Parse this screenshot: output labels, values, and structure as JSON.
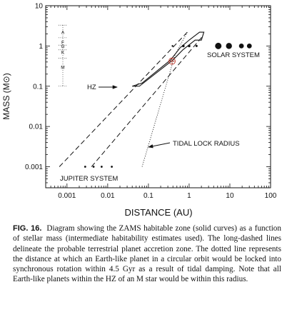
{
  "chart_data": {
    "type": "scatter",
    "xscale": "log",
    "yscale": "log",
    "xlim": [
      0.0003,
      100
    ],
    "ylim": [
      0.0003,
      10
    ],
    "xlabel": "DISTANCE (AU)",
    "ylabel": "MASS (M⊙)",
    "xticks": [
      {
        "v": 0.001,
        "label": "0.001"
      },
      {
        "v": 0.01,
        "label": "0.01"
      },
      {
        "v": 0.1,
        "label": "0.1"
      },
      {
        "v": 1,
        "label": "1"
      },
      {
        "v": 10,
        "label": "10"
      },
      {
        "v": 100,
        "label": "100"
      }
    ],
    "yticks": [
      {
        "v": 0.001,
        "label": "0.001"
      },
      {
        "v": 0.01,
        "label": "0.01"
      },
      {
        "v": 0.1,
        "label": "0.1"
      },
      {
        "v": 1,
        "label": "1"
      },
      {
        "v": 10,
        "label": "10"
      }
    ],
    "spectral_classes": [
      {
        "label": "A",
        "mass": 2.2
      },
      {
        "label": "F",
        "mass": 1.25
      },
      {
        "label": "G",
        "mass": 1.0
      },
      {
        "label": "K",
        "mass": 0.7
      },
      {
        "label": "M",
        "mass": 0.3
      }
    ],
    "spectral_boundaries": [
      3.3,
      1.6,
      1.05,
      0.8,
      0.5,
      0.1
    ],
    "hz_polygon": [
      [
        0.04,
        0.1
      ],
      [
        0.06,
        0.1
      ],
      [
        0.4,
        0.45
      ],
      [
        0.7,
        0.8
      ],
      [
        1.4,
        1.4
      ],
      [
        2.0,
        1.4
      ],
      [
        2.3,
        2.2
      ],
      [
        1.8,
        2.2
      ],
      [
        1.0,
        1.4
      ],
      [
        0.6,
        0.9
      ],
      [
        0.35,
        0.45
      ],
      [
        0.07,
        0.12
      ]
    ],
    "accretion_lines": [
      {
        "points": [
          [
            0.00065,
            0.001
          ],
          [
            0.9,
            2.2
          ]
        ]
      },
      {
        "points": [
          [
            0.004,
            0.001
          ],
          [
            2.2,
            1.8
          ]
        ]
      }
    ],
    "tidal_lock_line": [
      [
        0.07,
        0.001
      ],
      [
        0.45,
        0.6
      ],
      [
        0.9,
        2.2
      ]
    ],
    "earth_symbol": {
      "x": 0.38,
      "y": 0.42
    },
    "solar_system": [
      {
        "x": 0.39,
        "y": 1,
        "r": 1.2
      },
      {
        "x": 0.72,
        "y": 1,
        "r": 1.8
      },
      {
        "x": 1.0,
        "y": 1,
        "r": 1.8
      },
      {
        "x": 1.52,
        "y": 1,
        "r": 1.5
      },
      {
        "x": 5.2,
        "y": 1,
        "r": 4.5
      },
      {
        "x": 9.5,
        "y": 1,
        "r": 4.2
      },
      {
        "x": 19.2,
        "y": 1,
        "r": 3.4
      },
      {
        "x": 30.1,
        "y": 1,
        "r": 3.4
      }
    ],
    "jupiter_system": [
      {
        "x": 0.0028,
        "y": 0.001,
        "r": 1.4
      },
      {
        "x": 0.0045,
        "y": 0.001,
        "r": 1.4
      },
      {
        "x": 0.0071,
        "y": 0.001,
        "r": 1.4
      },
      {
        "x": 0.0126,
        "y": 0.001,
        "r": 1.4
      }
    ],
    "labels": {
      "hz": "HZ",
      "solar_system": "SOLAR SYSTEM",
      "tidal_lock": "TIDAL LOCK RADIUS",
      "jupiter_system": "JUPITER SYSTEM"
    }
  },
  "caption": {
    "fig_label": "FIG. 16.",
    "text": "Diagram showing the ZAMS habitable zone (solid curves) as a function of stellar mass (intermediate habitability estimates used). The long-dashed lines delineate the probable terrestrial planet accretion zone. The dotted line represents the distance at which an Earth-like planet in a circular orbit would be locked into synchronous rotation within 4.5 Gyr as a result of tidal damping. Note that all Earth-like planets within the HZ of an M star would be within this radius."
  }
}
